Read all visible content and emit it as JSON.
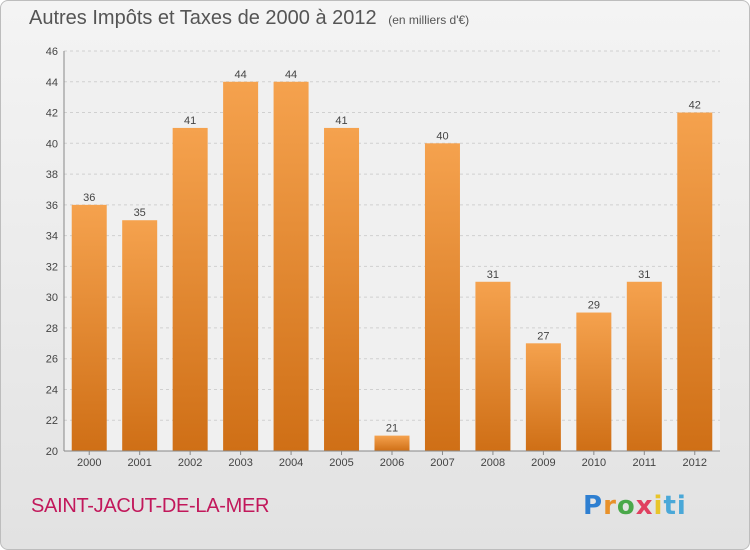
{
  "header": {
    "title": "Autres Impôts et Taxes de 2000 à 2012",
    "unit": "(en milliers d'€)"
  },
  "footer": {
    "commune": "SAINT-JACUT-DE-LA-MER",
    "logo": "Proxiti"
  },
  "colors": {
    "bar_light": "#f5a24e",
    "bar_dark": "#cf6f16",
    "commune_text": "#c2185b"
  },
  "chart_data": {
    "type": "bar",
    "title": "Autres Impôts et Taxes de 2000 à 2012",
    "subtitle": "(en milliers d'€)",
    "categories": [
      "2000",
      "2001",
      "2002",
      "2003",
      "2004",
      "2005",
      "2006",
      "2007",
      "2008",
      "2009",
      "2010",
      "2011",
      "2012"
    ],
    "values": [
      36,
      35,
      41,
      44,
      44,
      41,
      21,
      40,
      31,
      27,
      29,
      31,
      42
    ],
    "ylim": [
      20,
      46
    ],
    "yticks": [
      20,
      22,
      24,
      26,
      28,
      30,
      32,
      34,
      36,
      38,
      40,
      42,
      44,
      46
    ],
    "grid": true,
    "data_labels": true,
    "xlabel": "",
    "ylabel": ""
  }
}
